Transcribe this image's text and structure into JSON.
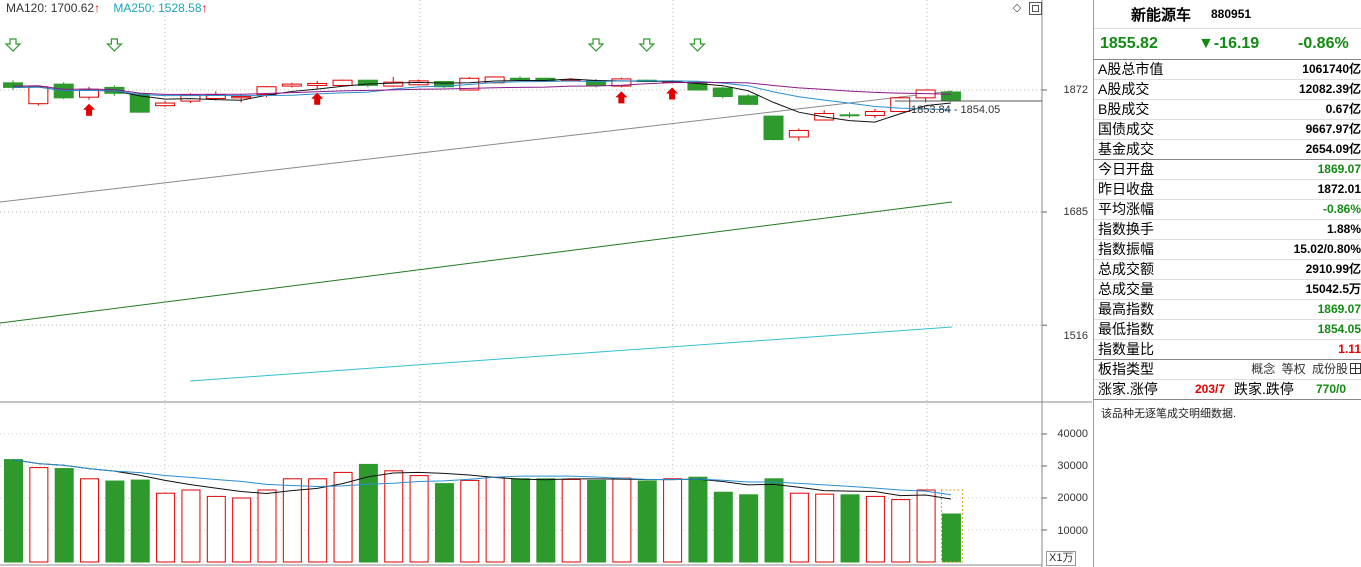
{
  "ma_legend": {
    "ma120_text": "MA120: 1700.62",
    "ma120_arrow": "↑",
    "ma250_text": "MA250: 1528.58",
    "ma250_arrow": "↑",
    "ma120_color": "#333333",
    "ma250_color": "#1aa5b8"
  },
  "toolbar": {
    "diamond_icon": "◇",
    "maximize_icon": "maximize-icon"
  },
  "price_axis": {
    "ticks": [
      "1872",
      "1685",
      "1516"
    ]
  },
  "volume_axis": {
    "ticks": [
      "40000",
      "30000",
      "20000",
      "10000"
    ],
    "unit": "X1万"
  },
  "range_annotation": "1853.84 - 1854.05",
  "colors": {
    "up": "#e00000",
    "down": "#2e9a2e",
    "ma_black": "#111111",
    "ma_blue": "#2a8fd0",
    "ma_purple": "#8a1a8a",
    "ma_gray": "#888888",
    "ma_green": "#1e7a1e",
    "ma_cyan": "#33c0d0"
  },
  "chart_data": {
    "type": "candlestick",
    "candles": [
      {
        "o": 1883,
        "c": 1876,
        "h": 1887,
        "l": 1872,
        "vol": 32000
      },
      {
        "o": 1851,
        "c": 1877,
        "h": 1878,
        "l": 1848,
        "vol": 29500
      },
      {
        "o": 1881,
        "c": 1860,
        "h": 1884,
        "l": 1858,
        "vol": 29200
      },
      {
        "o": 1861,
        "c": 1873,
        "h": 1877,
        "l": 1857,
        "vol": 26000
      },
      {
        "o": 1876,
        "c": 1867,
        "h": 1879,
        "l": 1863,
        "vol": 25300
      },
      {
        "o": 1866,
        "c": 1838,
        "h": 1867,
        "l": 1838,
        "vol": 25600
      },
      {
        "o": 1848,
        "c": 1852,
        "h": 1855,
        "l": 1846,
        "vol": 21500
      },
      {
        "o": 1855,
        "c": 1864,
        "h": 1867,
        "l": 1852,
        "vol": 22500
      },
      {
        "o": 1859,
        "c": 1865,
        "h": 1870,
        "l": 1856,
        "vol": 20500
      },
      {
        "o": 1860,
        "c": 1862,
        "h": 1866,
        "l": 1853,
        "vol": 20000
      },
      {
        "o": 1865,
        "c": 1877,
        "h": 1878,
        "l": 1861,
        "vol": 22500
      },
      {
        "o": 1878,
        "c": 1881,
        "h": 1883,
        "l": 1876,
        "vol": 26000
      },
      {
        "o": 1879,
        "c": 1882,
        "h": 1886,
        "l": 1874,
        "vol": 26000
      },
      {
        "o": 1879,
        "c": 1887,
        "h": 1888,
        "l": 1878,
        "vol": 28000
      },
      {
        "o": 1887,
        "c": 1879,
        "h": 1888,
        "l": 1876,
        "vol": 30500
      },
      {
        "o": 1878,
        "c": 1884,
        "h": 1892,
        "l": 1877,
        "vol": 28500
      },
      {
        "o": 1880,
        "c": 1886,
        "h": 1888,
        "l": 1879,
        "vol": 27000
      },
      {
        "o": 1885,
        "c": 1877,
        "h": 1886,
        "l": 1875,
        "vol": 24500
      },
      {
        "o": 1872,
        "c": 1890,
        "h": 1892,
        "l": 1871,
        "vol": 25500
      },
      {
        "o": 1883,
        "c": 1892,
        "h": 1893,
        "l": 1882,
        "vol": 26500
      },
      {
        "o": 1890,
        "c": 1888,
        "h": 1893,
        "l": 1887,
        "vol": 26000
      },
      {
        "o": 1890,
        "c": 1886,
        "h": 1891,
        "l": 1885,
        "vol": 26000
      },
      {
        "o": 1888,
        "c": 1888,
        "h": 1890,
        "l": 1886,
        "vol": 25800
      },
      {
        "o": 1886,
        "c": 1879,
        "h": 1889,
        "l": 1876,
        "vol": 25500
      },
      {
        "o": 1878,
        "c": 1889,
        "h": 1891,
        "l": 1876,
        "vol": 26200
      },
      {
        "o": 1887,
        "c": 1885,
        "h": 1888,
        "l": 1884,
        "vol": 25300
      },
      {
        "o": 1885,
        "c": 1885,
        "h": 1887,
        "l": 1882,
        "vol": 26000
      },
      {
        "o": 1884,
        "c": 1872,
        "h": 1886,
        "l": 1871,
        "vol": 26500
      },
      {
        "o": 1875,
        "c": 1862,
        "h": 1877,
        "l": 1859,
        "vol": 21800
      },
      {
        "o": 1863,
        "c": 1850,
        "h": 1866,
        "l": 1849,
        "vol": 21000
      },
      {
        "o": 1832,
        "c": 1796,
        "h": 1833,
        "l": 1795,
        "vol": 26000
      },
      {
        "o": 1800,
        "c": 1810,
        "h": 1813,
        "l": 1794,
        "vol": 21500
      },
      {
        "o": 1826,
        "c": 1836,
        "h": 1841,
        "l": 1826,
        "vol": 21200
      },
      {
        "o": 1834,
        "c": 1833,
        "h": 1838,
        "l": 1829,
        "vol": 21000
      },
      {
        "o": 1833,
        "c": 1839,
        "h": 1843,
        "l": 1829,
        "vol": 20500
      },
      {
        "o": 1839,
        "c": 1860,
        "h": 1862,
        "l": 1838,
        "vol": 19500
      },
      {
        "o": 1860,
        "c": 1872,
        "h": 1873,
        "l": 1853,
        "vol": 22500
      },
      {
        "o": 1869,
        "c": 1856,
        "h": 1869,
        "l": 1854,
        "vol": 15000
      }
    ]
  },
  "panel": {
    "name": "新能源车",
    "code": "880951",
    "price": "1855.82",
    "change": "▼-16.19",
    "change_pct": "-0.86%",
    "rows": [
      {
        "k": "A股总市值",
        "v": "1061740亿",
        "cls": ""
      },
      {
        "k": "A股成交",
        "v": "12082.39亿",
        "cls": ""
      },
      {
        "k": "B股成交",
        "v": "0.67亿",
        "cls": ""
      },
      {
        "k": "国债成交",
        "v": "9667.97亿",
        "cls": ""
      },
      {
        "k": "基金成交",
        "v": "2654.09亿",
        "cls": ""
      }
    ],
    "rows2": [
      {
        "k": "今日开盘",
        "v": "1869.07",
        "cls": "green"
      },
      {
        "k": "昨日收盘",
        "v": "1872.01",
        "cls": ""
      },
      {
        "k": "平均涨幅",
        "v": "-0.86%",
        "cls": "green"
      },
      {
        "k": "指数换手",
        "v": "1.88%",
        "cls": ""
      },
      {
        "k": "指数振幅",
        "v": "15.02/0.80%",
        "cls": ""
      },
      {
        "k": "总成交额",
        "v": "2910.99亿",
        "cls": ""
      },
      {
        "k": "总成交量",
        "v": "15042.5万",
        "cls": ""
      },
      {
        "k": "最高指数",
        "v": "1869.07",
        "cls": "green"
      },
      {
        "k": "最低指数",
        "v": "1854.05",
        "cls": "green"
      },
      {
        "k": "指数量比",
        "v": "1.11",
        "cls": "red"
      }
    ],
    "board_type_label": "板指类型",
    "board_tags": [
      "概念",
      "等权",
      "成份股"
    ],
    "updown_label": "涨家.涨停",
    "up_value": "203/7",
    "down_label": "跌家.跌停",
    "down_value": "770/0",
    "note": "该品种无逐笔成交明细数据."
  }
}
